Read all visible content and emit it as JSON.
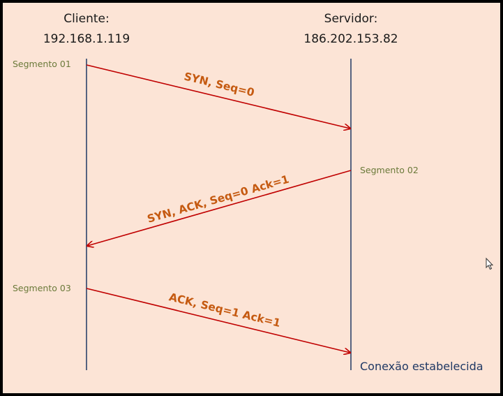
{
  "client": {
    "title": "Cliente:",
    "address": "192.168.1.119"
  },
  "server": {
    "title": "Servidor:",
    "address": "186.202.153.82"
  },
  "segments": [
    {
      "label": "Segmento 01",
      "message": "SYN, Seq=0"
    },
    {
      "label": "Segmento 02",
      "message": "SYN, ACK, Seq=0 Ack=1"
    },
    {
      "label": "Segmento 03",
      "message": "ACK, Seq=1 Ack=1"
    }
  ],
  "status": "Conexão estabelecida",
  "colors": {
    "background": "#FCE4D6",
    "lifeline": "#1F3864",
    "arrow": "#C00000",
    "message_text": "#C55A11",
    "segment_text": "#6B7A3A",
    "status_text": "#1F3864"
  },
  "icons": {
    "cursor": "mouse-pointer-icon"
  }
}
